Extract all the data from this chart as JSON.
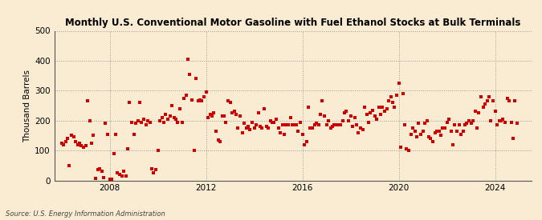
{
  "title": "Monthly U.S. Conventional Motor Gasoline with Fuel Ethanol Stocks at Bulk Terminals",
  "ylabel": "Thousand Barrels",
  "source": "Source: U.S. Energy Information Administration",
  "background_color": "#faecd2",
  "marker_color": "#cc0000",
  "xlim_start": 2005.7,
  "xlim_end": 2025.5,
  "ylim": [
    0,
    500
  ],
  "yticks": [
    0,
    100,
    200,
    300,
    400,
    500
  ],
  "xticks": [
    2008,
    2012,
    2016,
    2020,
    2024
  ],
  "data": [
    [
      2006.0,
      125
    ],
    [
      2006.08,
      120
    ],
    [
      2006.17,
      130
    ],
    [
      2006.25,
      140
    ],
    [
      2006.33,
      50
    ],
    [
      2006.42,
      150
    ],
    [
      2006.5,
      145
    ],
    [
      2006.58,
      130
    ],
    [
      2006.67,
      120
    ],
    [
      2006.75,
      125
    ],
    [
      2006.83,
      115
    ],
    [
      2006.92,
      110
    ],
    [
      2007.0,
      115
    ],
    [
      2007.08,
      265
    ],
    [
      2007.17,
      200
    ],
    [
      2007.25,
      125
    ],
    [
      2007.33,
      150
    ],
    [
      2007.42,
      7
    ],
    [
      2007.5,
      35
    ],
    [
      2007.58,
      40
    ],
    [
      2007.67,
      30
    ],
    [
      2007.75,
      10
    ],
    [
      2007.83,
      190
    ],
    [
      2007.92,
      155
    ],
    [
      2008.0,
      5
    ],
    [
      2008.08,
      3
    ],
    [
      2008.17,
      90
    ],
    [
      2008.25,
      155
    ],
    [
      2008.33,
      25
    ],
    [
      2008.42,
      20
    ],
    [
      2008.5,
      15
    ],
    [
      2008.58,
      30
    ],
    [
      2008.67,
      15
    ],
    [
      2008.75,
      105
    ],
    [
      2008.83,
      260
    ],
    [
      2008.92,
      195
    ],
    [
      2009.0,
      155
    ],
    [
      2009.08,
      190
    ],
    [
      2009.17,
      200
    ],
    [
      2009.25,
      260
    ],
    [
      2009.33,
      195
    ],
    [
      2009.42,
      205
    ],
    [
      2009.5,
      185
    ],
    [
      2009.58,
      200
    ],
    [
      2009.67,
      195
    ],
    [
      2009.75,
      40
    ],
    [
      2009.83,
      25
    ],
    [
      2009.92,
      35
    ],
    [
      2010.0,
      100
    ],
    [
      2010.08,
      200
    ],
    [
      2010.17,
      210
    ],
    [
      2010.25,
      195
    ],
    [
      2010.33,
      220
    ],
    [
      2010.42,
      205
    ],
    [
      2010.5,
      215
    ],
    [
      2010.58,
      250
    ],
    [
      2010.67,
      210
    ],
    [
      2010.75,
      205
    ],
    [
      2010.83,
      195
    ],
    [
      2010.92,
      240
    ],
    [
      2011.0,
      195
    ],
    [
      2011.08,
      275
    ],
    [
      2011.17,
      285
    ],
    [
      2011.25,
      405
    ],
    [
      2011.33,
      355
    ],
    [
      2011.42,
      270
    ],
    [
      2011.5,
      100
    ],
    [
      2011.58,
      340
    ],
    [
      2011.67,
      265
    ],
    [
      2011.75,
      270
    ],
    [
      2011.83,
      265
    ],
    [
      2011.92,
      280
    ],
    [
      2012.0,
      295
    ],
    [
      2012.08,
      210
    ],
    [
      2012.17,
      220
    ],
    [
      2012.25,
      215
    ],
    [
      2012.33,
      225
    ],
    [
      2012.42,
      165
    ],
    [
      2012.5,
      135
    ],
    [
      2012.58,
      130
    ],
    [
      2012.67,
      215
    ],
    [
      2012.75,
      215
    ],
    [
      2012.83,
      195
    ],
    [
      2012.92,
      265
    ],
    [
      2013.0,
      260
    ],
    [
      2013.08,
      225
    ],
    [
      2013.17,
      230
    ],
    [
      2013.25,
      220
    ],
    [
      2013.33,
      175
    ],
    [
      2013.42,
      215
    ],
    [
      2013.5,
      160
    ],
    [
      2013.58,
      190
    ],
    [
      2013.67,
      175
    ],
    [
      2013.75,
      180
    ],
    [
      2013.83,
      170
    ],
    [
      2013.92,
      195
    ],
    [
      2014.0,
      175
    ],
    [
      2014.08,
      185
    ],
    [
      2014.17,
      225
    ],
    [
      2014.25,
      180
    ],
    [
      2014.33,
      175
    ],
    [
      2014.42,
      240
    ],
    [
      2014.5,
      180
    ],
    [
      2014.58,
      175
    ],
    [
      2014.67,
      200
    ],
    [
      2014.75,
      195
    ],
    [
      2014.83,
      195
    ],
    [
      2014.92,
      205
    ],
    [
      2015.0,
      175
    ],
    [
      2015.08,
      160
    ],
    [
      2015.17,
      185
    ],
    [
      2015.25,
      155
    ],
    [
      2015.33,
      185
    ],
    [
      2015.42,
      185
    ],
    [
      2015.5,
      210
    ],
    [
      2015.58,
      185
    ],
    [
      2015.67,
      185
    ],
    [
      2015.75,
      185
    ],
    [
      2015.83,
      165
    ],
    [
      2015.92,
      195
    ],
    [
      2016.0,
      155
    ],
    [
      2016.08,
      120
    ],
    [
      2016.17,
      130
    ],
    [
      2016.25,
      245
    ],
    [
      2016.33,
      175
    ],
    [
      2016.42,
      175
    ],
    [
      2016.5,
      185
    ],
    [
      2016.58,
      190
    ],
    [
      2016.67,
      185
    ],
    [
      2016.75,
      220
    ],
    [
      2016.83,
      265
    ],
    [
      2016.92,
      215
    ],
    [
      2017.0,
      185
    ],
    [
      2017.08,
      200
    ],
    [
      2017.17,
      175
    ],
    [
      2017.25,
      180
    ],
    [
      2017.33,
      185
    ],
    [
      2017.42,
      185
    ],
    [
      2017.5,
      185
    ],
    [
      2017.58,
      185
    ],
    [
      2017.67,
      200
    ],
    [
      2017.75,
      225
    ],
    [
      2017.83,
      230
    ],
    [
      2017.92,
      200
    ],
    [
      2018.0,
      215
    ],
    [
      2018.08,
      180
    ],
    [
      2018.17,
      210
    ],
    [
      2018.25,
      185
    ],
    [
      2018.33,
      160
    ],
    [
      2018.42,
      175
    ],
    [
      2018.5,
      170
    ],
    [
      2018.58,
      245
    ],
    [
      2018.67,
      220
    ],
    [
      2018.75,
      195
    ],
    [
      2018.83,
      225
    ],
    [
      2018.92,
      235
    ],
    [
      2019.0,
      215
    ],
    [
      2019.08,
      205
    ],
    [
      2019.17,
      245
    ],
    [
      2019.25,
      220
    ],
    [
      2019.33,
      245
    ],
    [
      2019.42,
      230
    ],
    [
      2019.5,
      240
    ],
    [
      2019.58,
      265
    ],
    [
      2019.67,
      280
    ],
    [
      2019.75,
      260
    ],
    [
      2019.83,
      245
    ],
    [
      2019.92,
      285
    ],
    [
      2020.0,
      325
    ],
    [
      2020.08,
      110
    ],
    [
      2020.17,
      290
    ],
    [
      2020.25,
      185
    ],
    [
      2020.33,
      105
    ],
    [
      2020.42,
      100
    ],
    [
      2020.5,
      155
    ],
    [
      2020.58,
      175
    ],
    [
      2020.67,
      165
    ],
    [
      2020.75,
      145
    ],
    [
      2020.83,
      190
    ],
    [
      2020.92,
      155
    ],
    [
      2021.0,
      165
    ],
    [
      2021.08,
      190
    ],
    [
      2021.17,
      200
    ],
    [
      2021.25,
      145
    ],
    [
      2021.33,
      140
    ],
    [
      2021.42,
      130
    ],
    [
      2021.5,
      160
    ],
    [
      2021.58,
      165
    ],
    [
      2021.67,
      165
    ],
    [
      2021.75,
      150
    ],
    [
      2021.83,
      175
    ],
    [
      2021.92,
      175
    ],
    [
      2022.0,
      195
    ],
    [
      2022.08,
      205
    ],
    [
      2022.17,
      165
    ],
    [
      2022.25,
      120
    ],
    [
      2022.33,
      185
    ],
    [
      2022.42,
      165
    ],
    [
      2022.5,
      185
    ],
    [
      2022.58,
      155
    ],
    [
      2022.67,
      165
    ],
    [
      2022.75,
      185
    ],
    [
      2022.83,
      190
    ],
    [
      2022.92,
      200
    ],
    [
      2023.0,
      190
    ],
    [
      2023.08,
      200
    ],
    [
      2023.17,
      230
    ],
    [
      2023.25,
      175
    ],
    [
      2023.33,
      225
    ],
    [
      2023.42,
      280
    ],
    [
      2023.5,
      245
    ],
    [
      2023.58,
      255
    ],
    [
      2023.67,
      265
    ],
    [
      2023.75,
      280
    ],
    [
      2023.83,
      200
    ],
    [
      2023.92,
      265
    ],
    [
      2024.0,
      230
    ],
    [
      2024.08,
      185
    ],
    [
      2024.17,
      200
    ],
    [
      2024.25,
      200
    ],
    [
      2024.33,
      205
    ],
    [
      2024.42,
      195
    ],
    [
      2024.5,
      275
    ],
    [
      2024.58,
      265
    ],
    [
      2024.67,
      195
    ],
    [
      2024.75,
      140
    ],
    [
      2024.83,
      265
    ],
    [
      2024.92,
      190
    ]
  ]
}
